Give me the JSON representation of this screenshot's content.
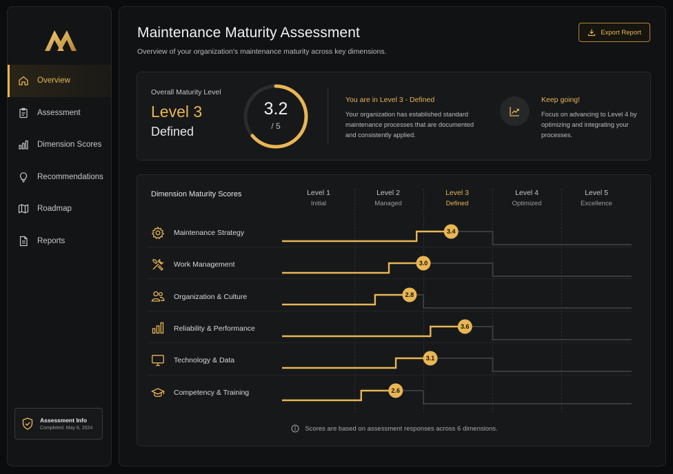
{
  "colors": {
    "accent": "#e8b654",
    "panel": "#17181a",
    "track": "#3a3b3e"
  },
  "sidebar": {
    "items": [
      {
        "label": "Overview",
        "icon": "home-icon",
        "active": true
      },
      {
        "label": "Assessment",
        "icon": "clipboard-icon",
        "active": false
      },
      {
        "label": "Dimension Scores",
        "icon": "bar-chart-icon",
        "active": false
      },
      {
        "label": "Recommendations",
        "icon": "lightbulb-icon",
        "active": false
      },
      {
        "label": "Roadmap",
        "icon": "map-icon",
        "active": false
      },
      {
        "label": "Reports",
        "icon": "document-icon",
        "active": false
      }
    ],
    "info": {
      "title": "Assessment Info",
      "completed": "Completed: May 8, 2024",
      "icon": "shield-check-icon"
    }
  },
  "header": {
    "title": "Maintenance Maturity Assessment",
    "subtitle": "Overview of your organization's maintenance maturity across key dimensions.",
    "export_label": "Export Report"
  },
  "summary": {
    "overall_label": "Overall Maturity Level",
    "level": "Level 3",
    "level_name": "Defined",
    "score": "3.2",
    "max": "/ 5",
    "score_fraction": 0.64,
    "status_title": "You are in Level 3 - Defined",
    "status_desc": "Your organization has established standard maintenance processes that are documented and consistently applied.",
    "next_title": "Keep going!",
    "next_desc": "Focus on advancing to Level 4 by optimizing and integrating your processes."
  },
  "scores": {
    "title": "Dimension Maturity Scores",
    "levels": [
      {
        "label": "Level 1",
        "name": "Initial",
        "current": false
      },
      {
        "label": "Level 2",
        "name": "Managed",
        "current": false
      },
      {
        "label": "Level 3",
        "name": "Defined",
        "current": true
      },
      {
        "label": "Level 4",
        "name": "Optimized",
        "current": false
      },
      {
        "label": "Level 5",
        "name": "Excellence",
        "current": false
      }
    ],
    "dimensions": [
      {
        "label": "Maintenance Strategy",
        "score": "3.4",
        "icon": "gear-icon"
      },
      {
        "label": "Work Management",
        "score": "3.0",
        "icon": "tools-icon"
      },
      {
        "label": "Organization & Culture",
        "score": "2.8",
        "icon": "people-icon"
      },
      {
        "label": "Reliability & Performance",
        "score": "3.6",
        "icon": "bar-chart-icon"
      },
      {
        "label": "Technology & Data",
        "score": "3.1",
        "icon": "monitor-icon"
      },
      {
        "label": "Competency & Training",
        "score": "2.6",
        "icon": "graduation-cap-icon"
      }
    ],
    "footnote": "Scores are based on assessment responses across 6 dimensions."
  }
}
